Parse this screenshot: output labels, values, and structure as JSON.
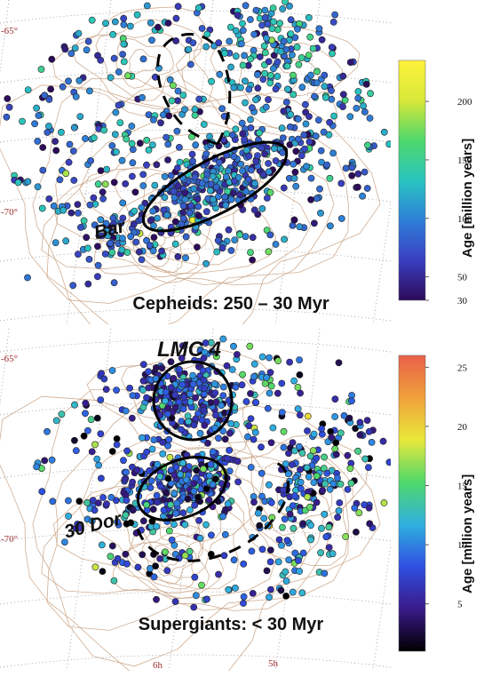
{
  "chart_data": [
    {
      "type": "scatter",
      "title": "Cepheids: 250 – 30 Myr",
      "dec_tick_labels": [
        "-65°",
        "-70°"
      ],
      "region_labels": [
        "Bar"
      ],
      "colorbar": {
        "label": "Age [million years]",
        "range": [
          30,
          235
        ],
        "ticks": [
          30,
          50,
          100,
          150,
          200
        ],
        "colormap": [
          "#2d0a5a",
          "#3a3fc0",
          "#2f7fd8",
          "#29c4c0",
          "#4fd86a",
          "#d8e83a",
          "#fff23a"
        ]
      },
      "annotations": [
        {
          "name": "Bar",
          "shape": "ellipse",
          "style": "solid"
        },
        {
          "name": "northern-arc",
          "shape": "arc",
          "style": "dashed"
        }
      ],
      "point_color_distribution": "mostly 50–150 Myr (blue to cyan), some green/yellow"
    },
    {
      "type": "scatter",
      "title": "Supergiants: < 30 Myr",
      "dec_tick_labels": [
        "-65°",
        "-70°"
      ],
      "ra_tick_labels": [
        "6h",
        "5h"
      ],
      "region_labels": [
        "LMC 4",
        "30 Dor"
      ],
      "colorbar": {
        "label": "Age [million years]",
        "range": [
          1,
          26
        ],
        "ticks": [
          5,
          10,
          15,
          20,
          25
        ],
        "colormap": [
          "#000000",
          "#3a1a8a",
          "#2f4fe0",
          "#2fb0e0",
          "#4fd86a",
          "#e8e83a",
          "#f0a03a",
          "#e8604a"
        ]
      },
      "annotations": [
        {
          "name": "LMC 4",
          "shape": "circle",
          "style": "solid"
        },
        {
          "name": "30 Dor",
          "shape": "ellipse",
          "style": "solid"
        },
        {
          "name": "southern-arc",
          "shape": "arc",
          "style": "dashed"
        }
      ],
      "point_color_distribution": "mostly 5–12 Myr (blue), scattered cyan/green/yellow/orange"
    }
  ]
}
